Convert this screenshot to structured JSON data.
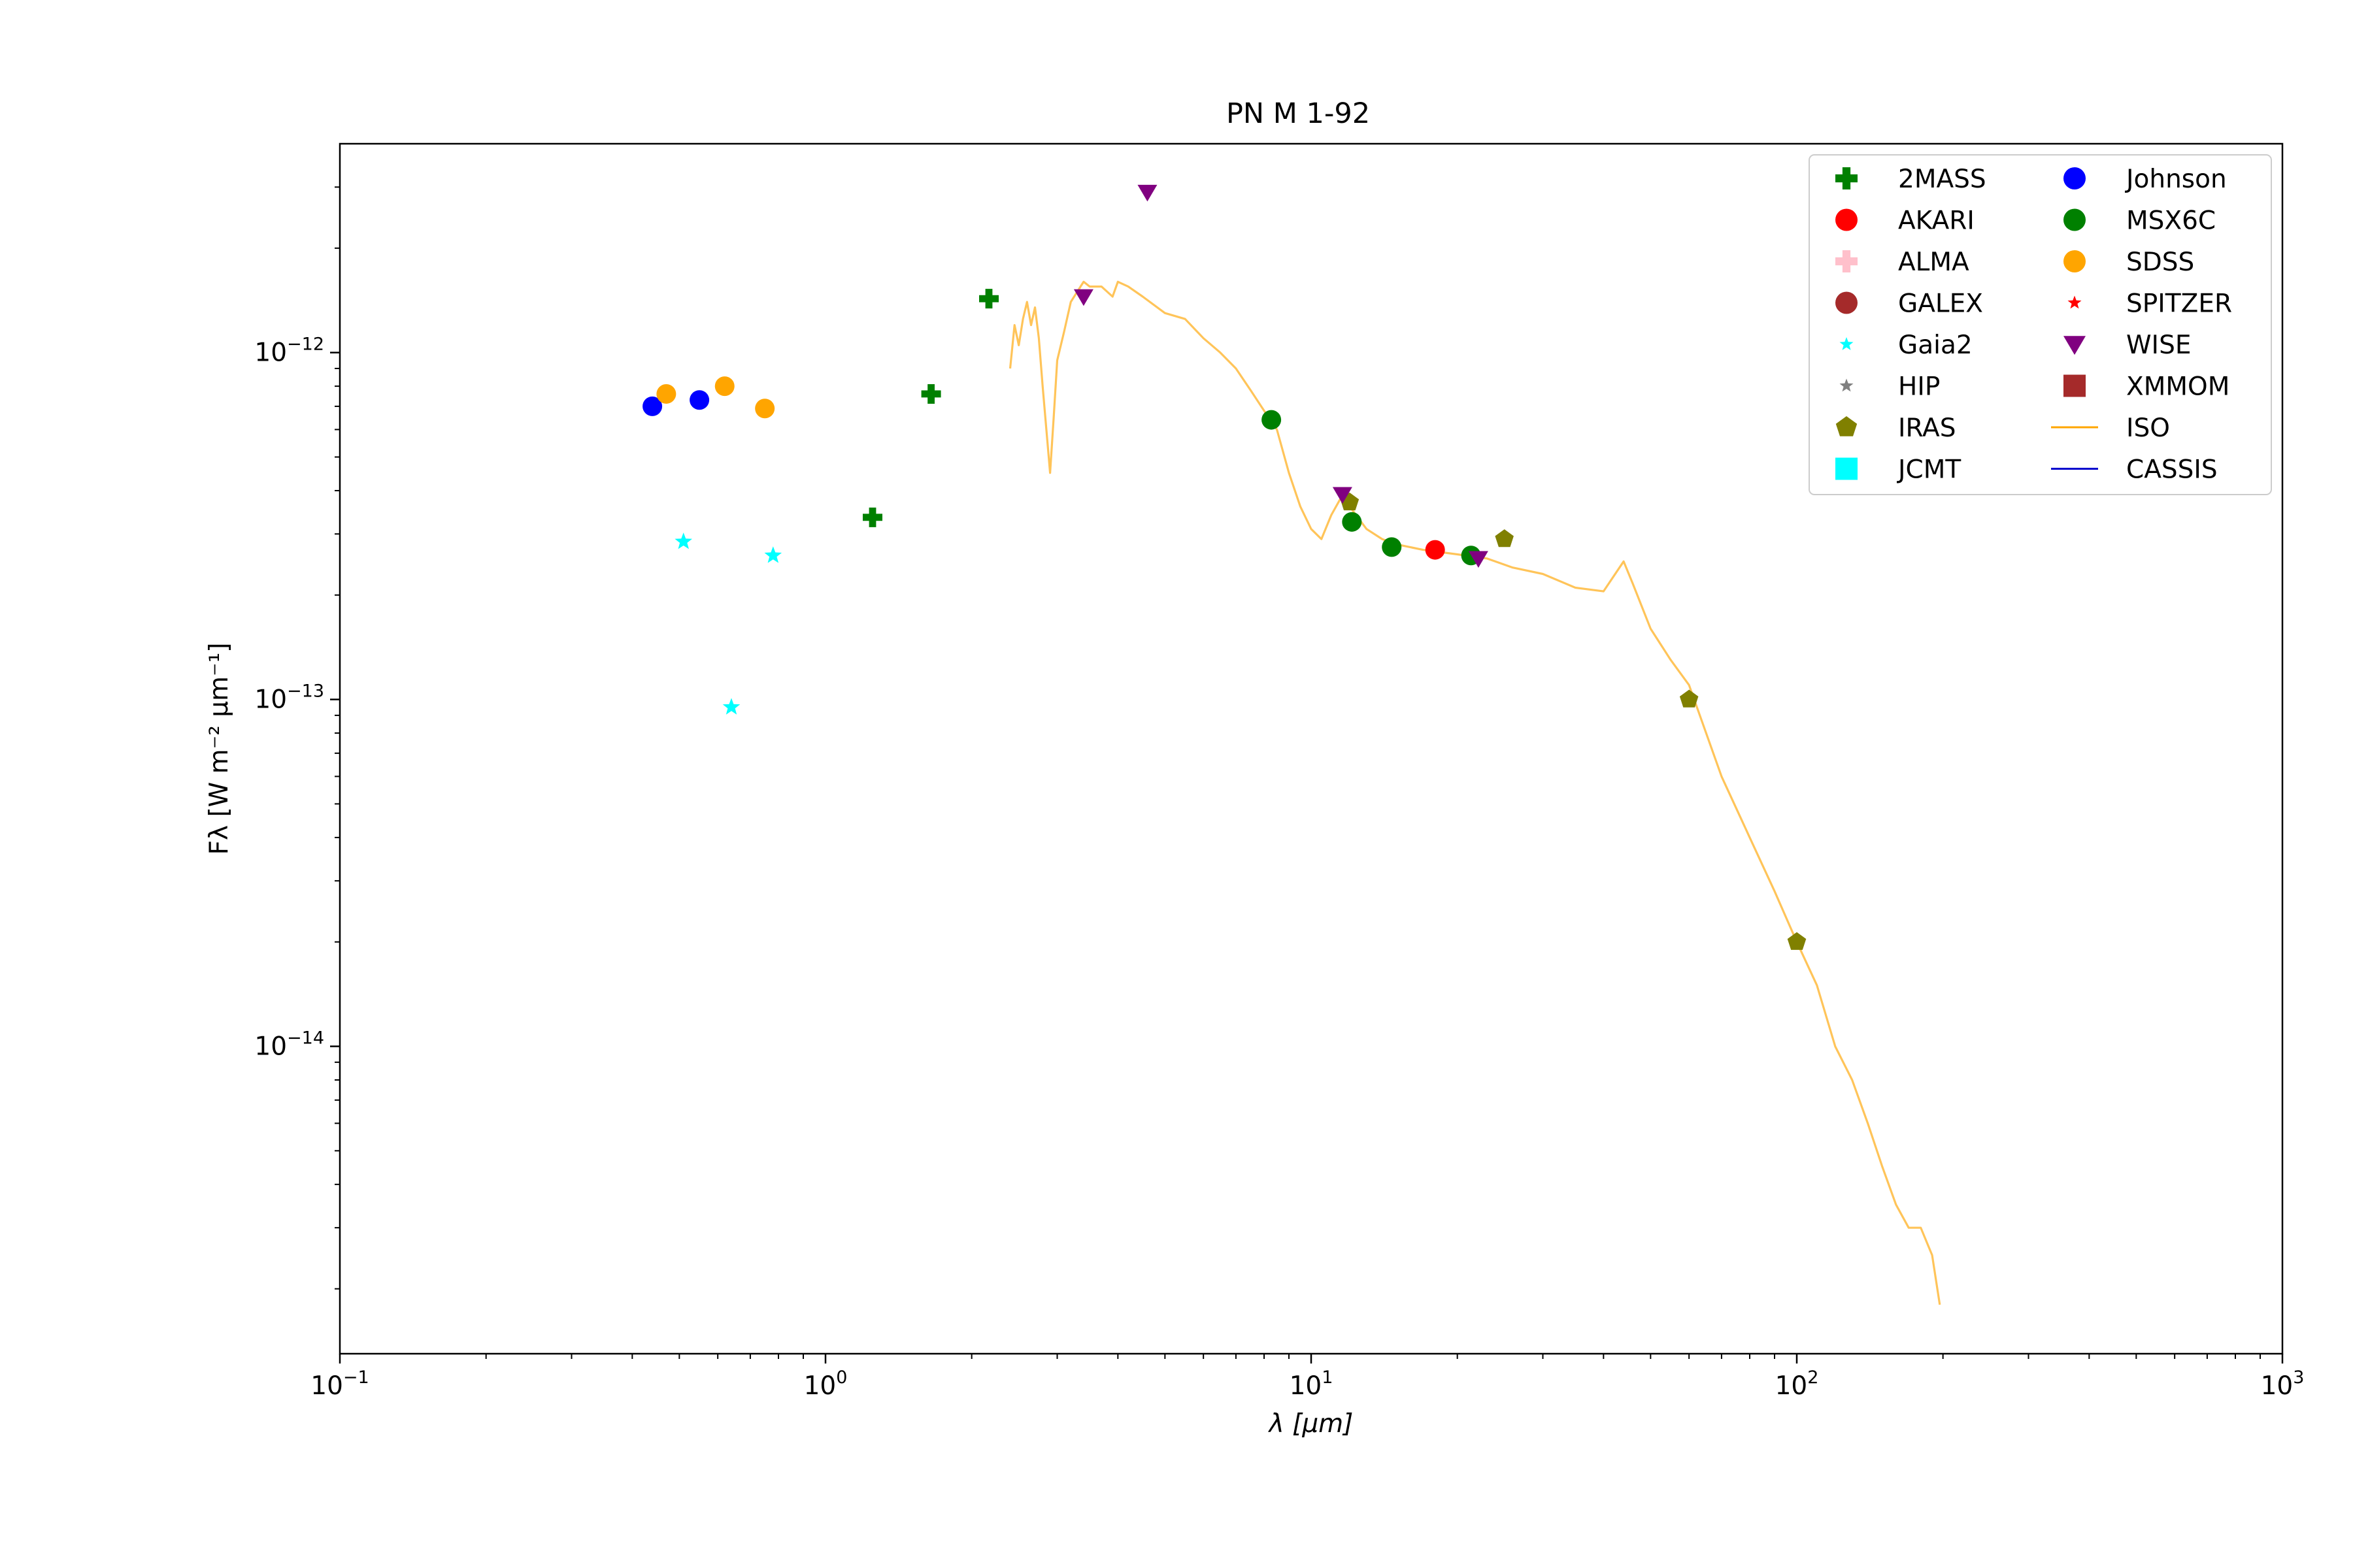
{
  "chart_data": {
    "type": "scatter",
    "title": "PN M 1-92",
    "xlabel": "λ [μm]",
    "ylabel": "Fλ [W m⁻² μm⁻¹]",
    "x_scale": "log",
    "y_scale": "log",
    "xlim": [
      0.1,
      1000
    ],
    "ylim": [
      1.3e-15,
      4e-12
    ],
    "x_ticks": [
      {
        "value": 0.1,
        "base": "10",
        "exp": "−1"
      },
      {
        "value": 1,
        "base": "10",
        "exp": "0"
      },
      {
        "value": 10,
        "base": "10",
        "exp": "1"
      },
      {
        "value": 100,
        "base": "10",
        "exp": "2"
      },
      {
        "value": 1000,
        "base": "10",
        "exp": "3"
      }
    ],
    "y_ticks": [
      {
        "value": 1e-14,
        "base": "10",
        "exp": "−14"
      },
      {
        "value": 1e-13,
        "base": "10",
        "exp": "−13"
      },
      {
        "value": 1e-12,
        "base": "10",
        "exp": "−12"
      }
    ],
    "legend_placement": "upper-right",
    "legend_columns": 2,
    "series": [
      {
        "name": "2MASS",
        "marker": "plus",
        "color": "#008000",
        "points": [
          [
            1.25,
            3.35e-13
          ],
          [
            1.65,
            7.6e-13
          ],
          [
            2.17,
            1.43e-12
          ]
        ]
      },
      {
        "name": "AKARI",
        "marker": "circle",
        "color": "#ff0000",
        "points": [
          [
            18.0,
            2.7e-13
          ]
        ]
      },
      {
        "name": "ALMA",
        "marker": "plus",
        "color": "#ffc0cb",
        "points": []
      },
      {
        "name": "GALEX",
        "marker": "circle",
        "color": "#a52a2a",
        "points": []
      },
      {
        "name": "Gaia2",
        "marker": "star",
        "color": "#00ffff",
        "points": [
          [
            0.51,
            2.85e-13
          ],
          [
            0.64,
            9.5e-14
          ],
          [
            0.78,
            2.6e-13
          ]
        ]
      },
      {
        "name": "HIP",
        "marker": "star",
        "color": "#808080",
        "points": []
      },
      {
        "name": "IRAS",
        "marker": "pentagon",
        "color": "#808000",
        "points": [
          [
            12.0,
            3.7e-13
          ],
          [
            25.0,
            2.9e-13
          ],
          [
            60.0,
            1e-13
          ],
          [
            100.0,
            2e-14
          ]
        ]
      },
      {
        "name": "JCMT",
        "marker": "square",
        "color": "#00ffff",
        "points": []
      },
      {
        "name": "Johnson",
        "marker": "circle",
        "color": "#0000ff",
        "points": [
          [
            0.44,
            7e-13
          ],
          [
            0.55,
            7.3e-13
          ]
        ]
      },
      {
        "name": "MSX6C",
        "marker": "circle",
        "color": "#008000",
        "points": [
          [
            8.28,
            6.4e-13
          ],
          [
            12.13,
            3.25e-13
          ],
          [
            14.65,
            2.75e-13
          ],
          [
            21.34,
            2.6e-13
          ]
        ]
      },
      {
        "name": "SDSS",
        "marker": "circle",
        "color": "#ffa500",
        "points": [
          [
            0.47,
            7.6e-13
          ],
          [
            0.62,
            8e-13
          ],
          [
            0.75,
            6.9e-13
          ]
        ]
      },
      {
        "name": "SPITZER",
        "marker": "star",
        "color": "#ff0000",
        "points": []
      },
      {
        "name": "WISE",
        "marker": "triangle_down",
        "color": "#800080",
        "points": [
          [
            3.4,
            1.45e-12
          ],
          [
            4.6,
            2.9e-12
          ],
          [
            11.6,
            3.9e-13
          ],
          [
            22.1,
            2.55e-13
          ]
        ]
      },
      {
        "name": "XMMOM",
        "marker": "square",
        "color": "#a52a2a",
        "points": []
      },
      {
        "name": "ISO",
        "marker": "line",
        "color": "#ffa500",
        "points": [
          [
            2.4,
            9e-13
          ],
          [
            2.45,
            1.2e-12
          ],
          [
            2.5,
            1.05e-12
          ],
          [
            2.55,
            1.25e-12
          ],
          [
            2.6,
            1.4e-12
          ],
          [
            2.65,
            1.2e-12
          ],
          [
            2.7,
            1.35e-12
          ],
          [
            2.75,
            1.1e-12
          ],
          [
            2.8,
            8e-13
          ],
          [
            2.85,
            6e-13
          ],
          [
            2.9,
            4.5e-13
          ],
          [
            2.95,
            6.5e-13
          ],
          [
            3.0,
            9.5e-13
          ],
          [
            3.1,
            1.15e-12
          ],
          [
            3.2,
            1.4e-12
          ],
          [
            3.3,
            1.5e-12
          ],
          [
            3.4,
            1.6e-12
          ],
          [
            3.5,
            1.55e-12
          ],
          [
            3.7,
            1.55e-12
          ],
          [
            3.9,
            1.45e-12
          ],
          [
            4.0,
            1.6e-12
          ],
          [
            4.2,
            1.55e-12
          ],
          [
            4.5,
            1.45e-12
          ],
          [
            5.0,
            1.3e-12
          ],
          [
            5.5,
            1.25e-12
          ],
          [
            6.0,
            1.1e-12
          ],
          [
            6.5,
            1e-12
          ],
          [
            7.0,
            9e-13
          ],
          [
            7.5,
            7.8e-13
          ],
          [
            8.0,
            6.8e-13
          ],
          [
            8.5,
            6e-13
          ],
          [
            9.0,
            4.5e-13
          ],
          [
            9.5,
            3.6e-13
          ],
          [
            10.0,
            3.1e-13
          ],
          [
            10.5,
            2.9e-13
          ],
          [
            11.0,
            3.4e-13
          ],
          [
            11.5,
            3.8e-13
          ],
          [
            12.0,
            3.6e-13
          ],
          [
            13.0,
            3.1e-13
          ],
          [
            14.0,
            2.9e-13
          ],
          [
            15.0,
            2.8e-13
          ],
          [
            17.0,
            2.7e-13
          ],
          [
            20.0,
            2.62e-13
          ],
          [
            23.0,
            2.55e-13
          ],
          [
            26.0,
            2.4e-13
          ],
          [
            30.0,
            2.3e-13
          ],
          [
            35.0,
            2.1e-13
          ],
          [
            40.0,
            2.05e-13
          ],
          [
            44.0,
            2.5e-13
          ],
          [
            46.0,
            2.15e-13
          ],
          [
            50.0,
            1.6e-13
          ],
          [
            55.0,
            1.3e-13
          ],
          [
            60.0,
            1.1e-13
          ],
          [
            70.0,
            6e-14
          ],
          [
            80.0,
            4e-14
          ],
          [
            90.0,
            2.8e-14
          ],
          [
            100.0,
            2e-14
          ],
          [
            110.0,
            1.5e-14
          ],
          [
            120.0,
            1e-14
          ],
          [
            130.0,
            8e-15
          ],
          [
            140.0,
            6e-15
          ],
          [
            150.0,
            4.5e-15
          ],
          [
            160.0,
            3.5e-15
          ],
          [
            170.0,
            3e-15
          ],
          [
            180.0,
            3e-15
          ],
          [
            190.0,
            2.5e-15
          ],
          [
            197.0,
            1.8e-15
          ]
        ]
      },
      {
        "name": "CASSIS",
        "marker": "line",
        "color": "#0000cd",
        "points": []
      }
    ]
  }
}
